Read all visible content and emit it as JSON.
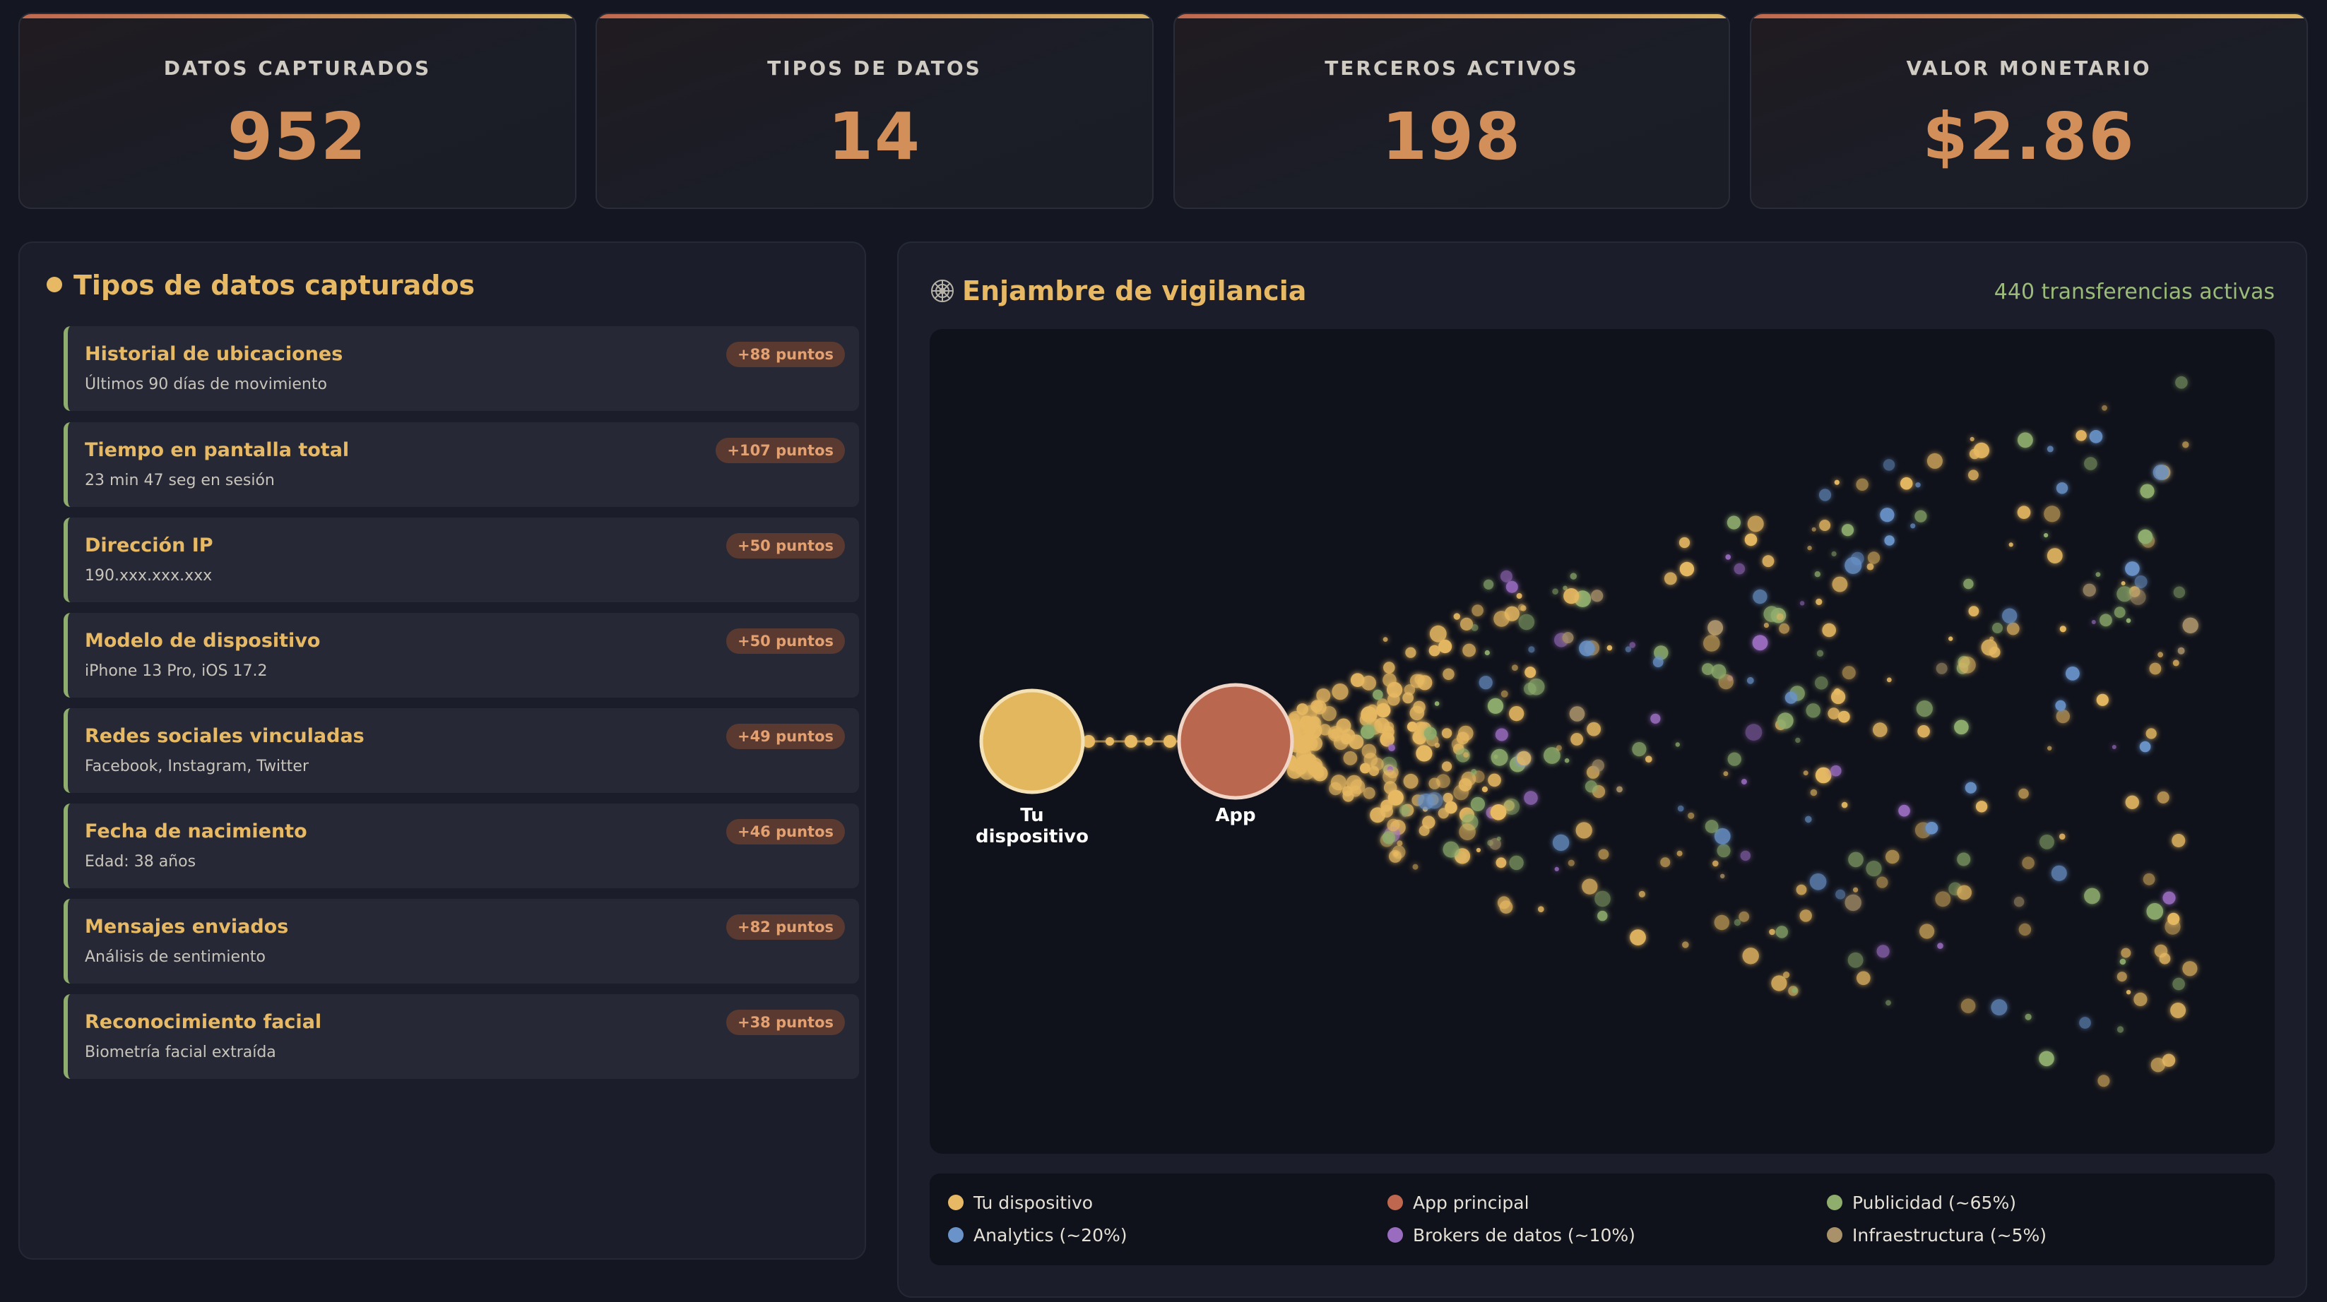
{
  "stats": [
    {
      "label": "DATOS CAPTURADOS",
      "value": "952"
    },
    {
      "label": "TIPOS DE DATOS",
      "value": "14"
    },
    {
      "label": "TERCEROS ACTIVOS",
      "value": "198"
    },
    {
      "label": "VALOR MONETARIO",
      "value": "$2.86"
    }
  ],
  "left_panel": {
    "title": "Tipos de datos capturados",
    "items": [
      {
        "title": "Historial de ubicaciones",
        "desc": "Últimos 90 días de movimiento",
        "badge": "+88 puntos"
      },
      {
        "title": "Tiempo en pantalla total",
        "desc": "23 min 47 seg en sesión",
        "badge": "+107 puntos"
      },
      {
        "title": "Dirección IP",
        "desc": "190.xxx.xxx.xxx",
        "badge": "+50 puntos"
      },
      {
        "title": "Modelo de dispositivo",
        "desc": "iPhone 13 Pro, iOS 17.2",
        "badge": "+50 puntos"
      },
      {
        "title": "Redes sociales vinculadas",
        "desc": "Facebook, Instagram, Twitter",
        "badge": "+49 puntos"
      },
      {
        "title": "Fecha de nacimiento",
        "desc": "Edad: 38 años",
        "badge": "+46 puntos"
      },
      {
        "title": "Mensajes enviados",
        "desc": "Análisis de sentimiento",
        "badge": "+82 puntos"
      },
      {
        "title": "Reconocimiento facial",
        "desc": "Biometría facial extraída",
        "badge": "+38 puntos"
      }
    ]
  },
  "swarm_panel": {
    "icon": "web-icon",
    "title": "Enjambre de vigilancia",
    "transfers": "440 transferencias activas",
    "nodes": {
      "device_label": "Tu dispositivo",
      "app_label": "App"
    },
    "legend": [
      {
        "label": "Tu dispositivo",
        "color": "#e7b964"
      },
      {
        "label": "App principal",
        "color": "#c0684f"
      },
      {
        "label": "Publicidad (~65%)",
        "color": "#8fae6e"
      },
      {
        "label": "Analytics (~20%)",
        "color": "#6a93c9"
      },
      {
        "label": "Brokers de datos (~10%)",
        "color": "#9a6cc0"
      },
      {
        "label": "Infraestructura (~5%)",
        "color": "#a9926a"
      }
    ]
  }
}
